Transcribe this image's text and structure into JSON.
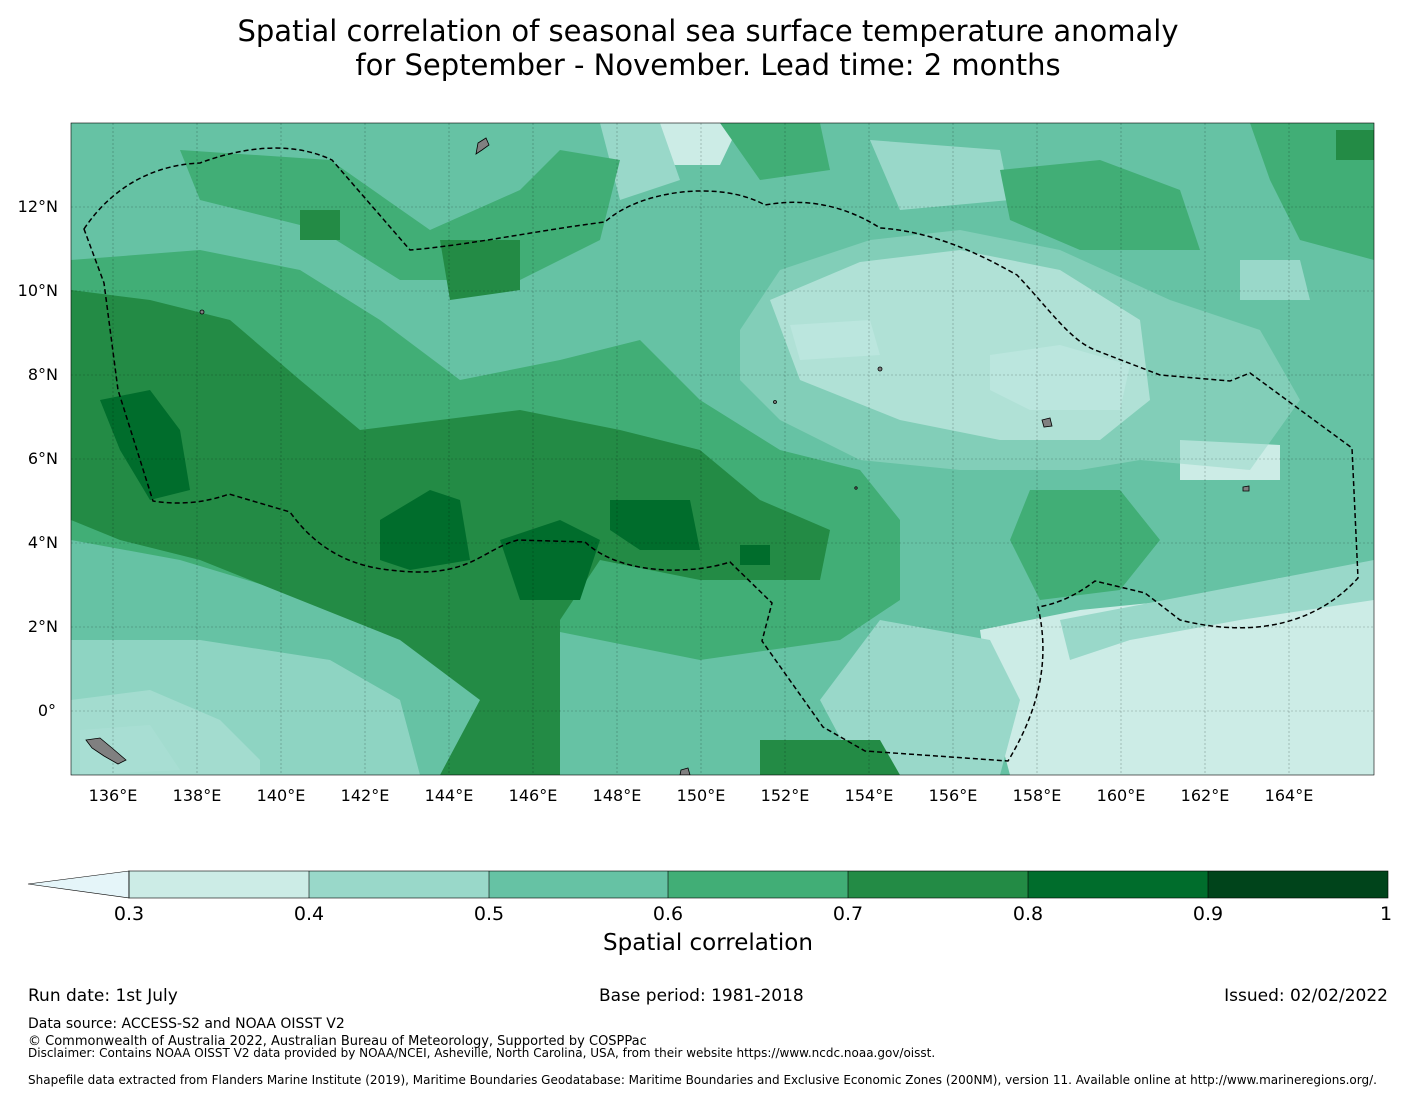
{
  "title_line1": "Spatial correlation of seasonal sea surface temperature anomaly",
  "title_line2": "for September - November. Lead time: 2 months",
  "map": {
    "lon_range": [
      135,
      166
    ],
    "lat_range": [
      -1.5,
      14
    ],
    "lon_ticks": [
      "136°E",
      "138°E",
      "140°E",
      "142°E",
      "144°E",
      "146°E",
      "148°E",
      "150°E",
      "152°E",
      "154°E",
      "156°E",
      "158°E",
      "160°E",
      "162°E",
      "164°E"
    ],
    "lat_ticks": [
      "12°N",
      "10°N",
      "8°N",
      "6°N",
      "4°N",
      "2°N",
      "0°"
    ],
    "land_color": "#808080",
    "boundary_style": "dashed"
  },
  "colorbar": {
    "levels": [
      "0.3",
      "0.4",
      "0.5",
      "0.6",
      "0.7",
      "0.8",
      "0.9",
      "1"
    ],
    "colors": [
      "#e5f5f9",
      "#ccece6",
      "#99d8c9",
      "#66c2a4",
      "#41ae76",
      "#238b45",
      "#006d2c",
      "#00441b"
    ],
    "extend": "min",
    "label": "Spatial correlation"
  },
  "footer": {
    "run_date": "Run date: 1st July",
    "base_period": "Base period: 1981-2018",
    "issued": "Issued: 02/02/2022",
    "data_source": "Data source: ACCESS-S2 and NOAA OISST V2",
    "copyright": "© Commonwealth of Australia 2022, Australian Bureau of Meteorology, Supported by COSPPac",
    "disclaimer": "Disclaimer: Contains NOAA OISST V2 data provided by NOAA/NCEI, Asheville, North Carolina, USA, from their website https://www.ncdc.noaa.gov/oisst.",
    "shapefile": "Shapefile data extracted from Flanders Marine Institute (2019), Maritime Boundaries Geodatabase: Maritime Boundaries and Exclusive Economic Zones (200NM), version 11. Available online at http://www.marineregions.org/."
  }
}
